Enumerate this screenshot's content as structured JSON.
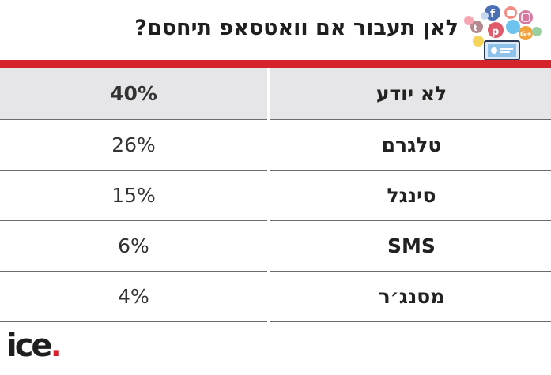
{
  "header": {
    "title": "לאן תעבור אם וואטסאפ תיחסם?",
    "social_icons": [
      "facebook-icon",
      "youtube-icon",
      "twitter-icon",
      "instagram-icon",
      "pinterest-icon",
      "tumblr-icon",
      "google-plus-icon",
      "snapchat-icon",
      "chat-icon",
      "laptop-profile-icon"
    ]
  },
  "table": {
    "rows": [
      {
        "label": "לא יודע",
        "value": "40%"
      },
      {
        "label": "טלגרם",
        "value": "26%"
      },
      {
        "label": "סינגל",
        "value": "15%"
      },
      {
        "label": "SMS",
        "value": "6%"
      },
      {
        "label": "מסנג׳ר",
        "value": "4%"
      }
    ]
  },
  "logo": {
    "text": "ice",
    "dot": "."
  },
  "colors": {
    "accent_red": "#d4232b",
    "header_row_bg": "#e6e6e8",
    "divider": "#6b6b6b"
  }
}
